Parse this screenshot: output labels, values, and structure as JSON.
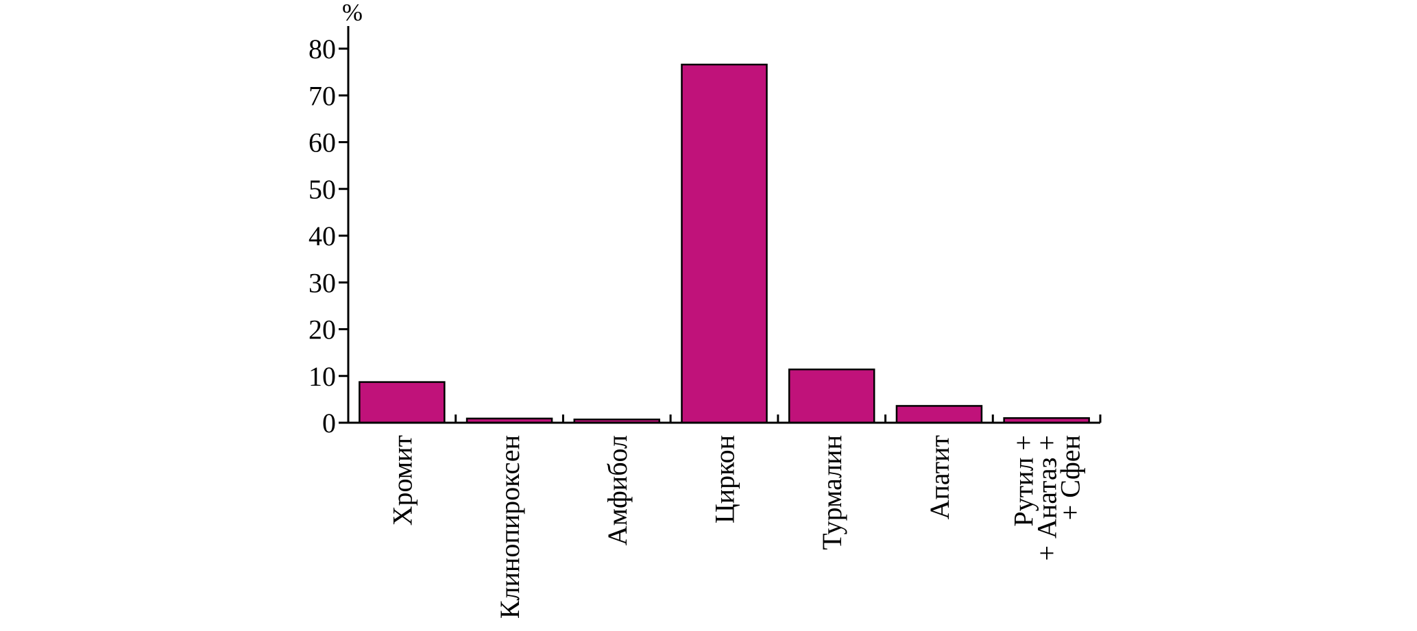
{
  "chart_data": {
    "type": "bar",
    "title": "",
    "xlabel": "",
    "ylabel": "%",
    "ylim": [
      0,
      80
    ],
    "yticks": [
      0,
      10,
      20,
      30,
      40,
      50,
      60,
      70,
      80
    ],
    "grid": false,
    "legend": "none",
    "bar_color": "#C0127A",
    "categories": [
      [
        "Хромит"
      ],
      [
        "Клинопироксен"
      ],
      [
        "Амфибол"
      ],
      [
        "Циркон"
      ],
      [
        "Турмалин"
      ],
      [
        "Апатит"
      ],
      [
        "Рутил +",
        "+ Анатаз +",
        "+ Сфен"
      ]
    ],
    "values": [
      8.7,
      0.9,
      0.7,
      76.6,
      11.4,
      3.6,
      1.0
    ]
  }
}
